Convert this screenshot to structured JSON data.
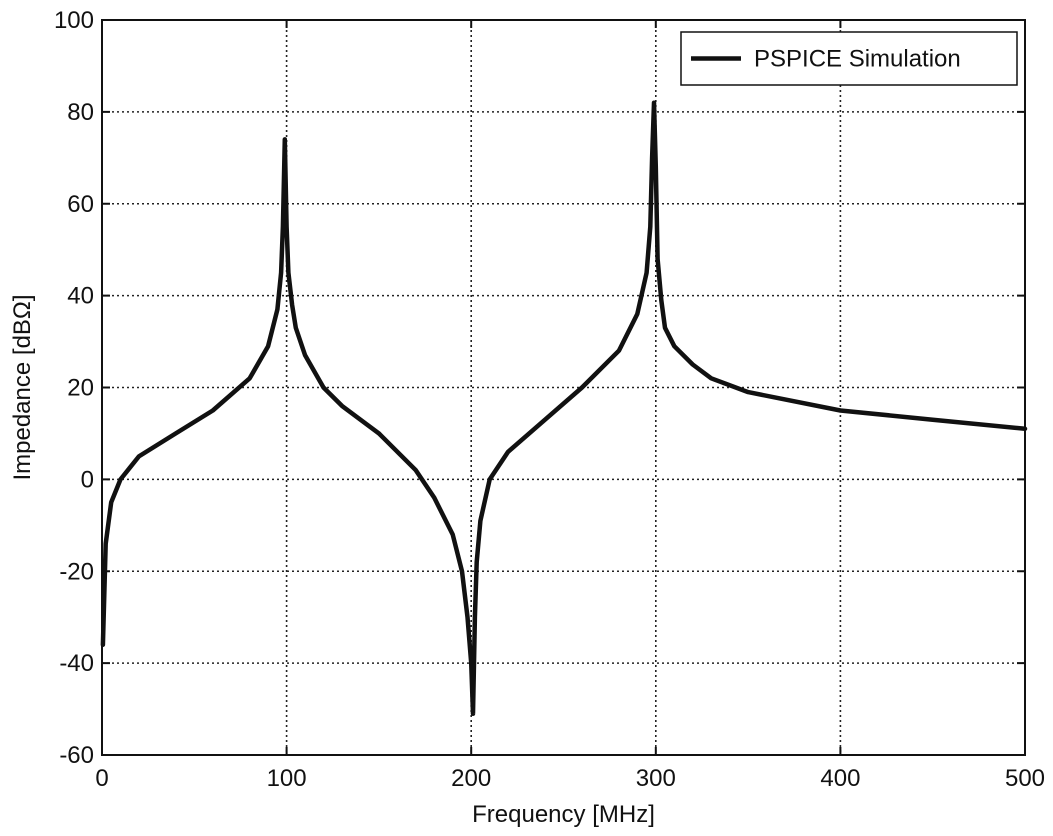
{
  "chart_data": {
    "type": "line",
    "title": "",
    "xlabel": "Frequency [MHz]",
    "ylabel": "Impedance [dBΩ]",
    "xlim": [
      0,
      500
    ],
    "ylim": [
      -60,
      100
    ],
    "x_ticks": [
      0,
      100,
      200,
      300,
      400,
      500
    ],
    "x_tick_labels": [
      "0",
      "100",
      "200",
      "300",
      "400",
      "500"
    ],
    "y_ticks": [
      -60,
      -40,
      -20,
      0,
      20,
      40,
      60,
      80,
      100
    ],
    "y_tick_labels": [
      "-60",
      "-40",
      "-20",
      "0",
      "20",
      "40",
      "60",
      "80",
      "100"
    ],
    "grid": true,
    "legend_position": "top-right",
    "colors": {
      "series": "#111111",
      "grid": "#222222",
      "background": "#ffffff"
    },
    "series": [
      {
        "name": "PSPICE Simulation",
        "x": [
          0.5,
          2,
          5,
          10,
          20,
          40,
          60,
          80,
          90,
          95,
          97,
          98,
          99,
          100,
          101,
          103,
          105,
          110,
          120,
          130,
          150,
          170,
          180,
          190,
          195,
          198,
          200,
          201,
          202,
          203,
          205,
          210,
          220,
          240,
          260,
          280,
          290,
          295,
          297,
          298,
          299,
          300,
          301,
          303,
          305,
          310,
          320,
          330,
          350,
          400,
          450,
          500
        ],
        "y": [
          -36,
          -14,
          -5,
          0,
          5,
          10,
          15,
          22,
          29,
          37,
          45,
          55,
          74,
          55,
          45,
          38,
          33,
          27,
          20,
          16,
          10,
          2,
          -4,
          -12,
          -20,
          -30,
          -40,
          -51,
          -30,
          -18,
          -9,
          0,
          6,
          13,
          20,
          28,
          36,
          45,
          55,
          70,
          82,
          68,
          48,
          39,
          33,
          29,
          25,
          22,
          19,
          15,
          13,
          11
        ]
      }
    ]
  }
}
